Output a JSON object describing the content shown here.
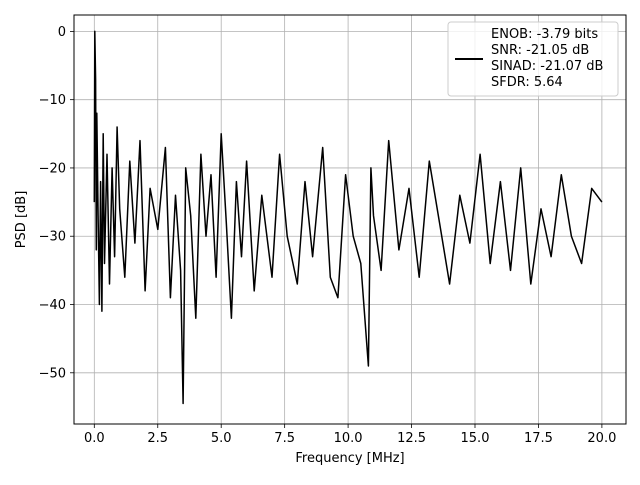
{
  "chart_data": {
    "type": "line",
    "title": "",
    "xlabel": "Frequency [MHz]",
    "ylabel": "PSD [dB]",
    "xlim": [
      -0.8,
      20.95
    ],
    "ylim": [
      -57.5,
      2.4
    ],
    "xticks": [
      0.0,
      2.5,
      5.0,
      7.5,
      10.0,
      12.5,
      15.0,
      17.5,
      20.0
    ],
    "xtick_labels": [
      "0.0",
      "2.5",
      "5.0",
      "7.5",
      "10.0",
      "12.5",
      "15.0",
      "17.5",
      "20.0"
    ],
    "yticks": [
      0,
      -10,
      -20,
      -30,
      -40,
      -50
    ],
    "ytick_labels": [
      "0",
      "−10",
      "−20",
      "−30",
      "−40",
      "−50"
    ],
    "grid": true,
    "legend_position": "top-right",
    "series": [
      {
        "name": "ENOB: -3.79 bits\nSNR: -21.05 dB\nSINAD: -21.07 dB\nSFDR: 5.64",
        "color": "#000000",
        "x": [
          0.0,
          0.02,
          0.05,
          0.08,
          0.1,
          0.15,
          0.2,
          0.25,
          0.3,
          0.35,
          0.4,
          0.5,
          0.6,
          0.7,
          0.8,
          0.9,
          1.0,
          1.2,
          1.4,
          1.6,
          1.8,
          2.0,
          2.2,
          2.5,
          2.8,
          3.0,
          3.2,
          3.4,
          3.5,
          3.6,
          3.8,
          4.0,
          4.2,
          4.4,
          4.6,
          4.8,
          5.0,
          5.2,
          5.4,
          5.6,
          5.8,
          6.0,
          6.3,
          6.6,
          7.0,
          7.3,
          7.6,
          8.0,
          8.3,
          8.6,
          9.0,
          9.3,
          9.6,
          9.9,
          10.2,
          10.5,
          10.8,
          10.9,
          11.0,
          11.3,
          11.6,
          12.0,
          12.4,
          12.8,
          13.2,
          13.6,
          14.0,
          14.4,
          14.8,
          15.2,
          15.6,
          16.0,
          16.4,
          16.8,
          17.2,
          17.6,
          18.0,
          18.4,
          18.8,
          19.2,
          19.6,
          20.0
        ],
        "y": [
          -25,
          0,
          -7,
          -32,
          -12,
          -27,
          -40,
          -22,
          -41,
          -15,
          -34,
          -18,
          -37,
          -20,
          -33,
          -14,
          -26,
          -36,
          -19,
          -31,
          -16,
          -38,
          -23,
          -29,
          -17,
          -39,
          -24,
          -35,
          -54.5,
          -20,
          -27,
          -42,
          -18,
          -30,
          -21,
          -36,
          -15,
          -28,
          -42,
          -22,
          -33,
          -19,
          -38,
          -24,
          -36,
          -18,
          -30,
          -37,
          -22,
          -33,
          -17,
          -36,
          -39,
          -21,
          -30,
          -34,
          -49,
          -20,
          -27,
          -35,
          -16,
          -32,
          -23,
          -36,
          -19,
          -28,
          -37,
          -24,
          -31,
          -18,
          -34,
          -22,
          -35,
          -20,
          -37,
          -26,
          -33,
          -21,
          -30,
          -34,
          -23,
          -25
        ]
      }
    ]
  }
}
